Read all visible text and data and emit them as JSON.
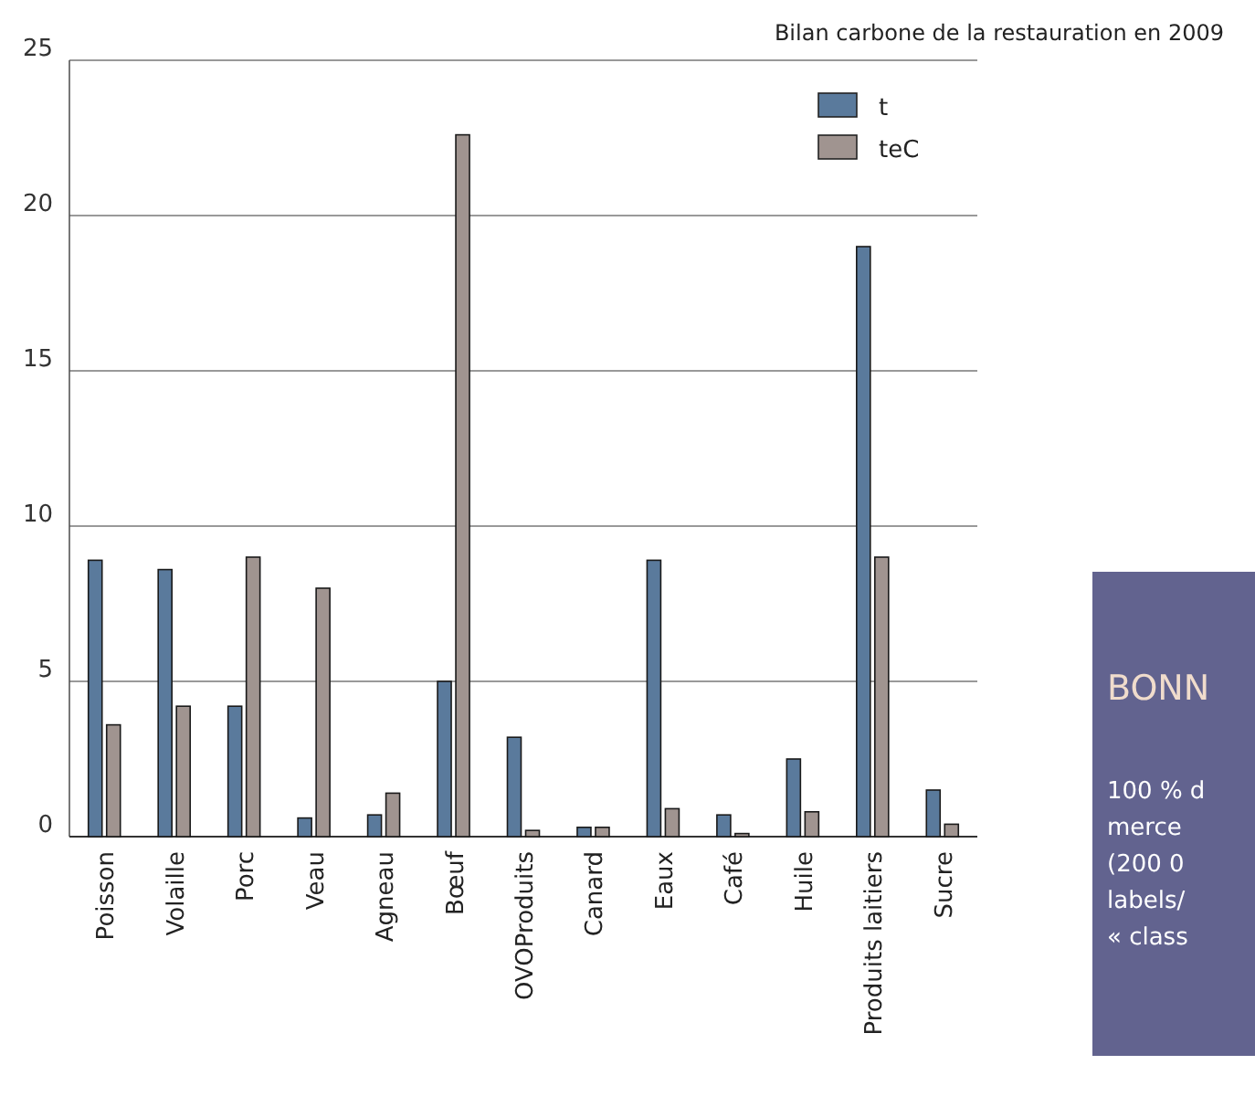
{
  "chart_data": [
    {
      "type": "bar",
      "title": "Bilan carbone de la restauration en 2009",
      "categories": [
        "Poisson",
        "Volaille",
        "Porc",
        "Veau",
        "Agneau",
        "Bœuf",
        "OVOProduits",
        "Canard",
        "Eaux",
        "Café",
        "Huile",
        "Produits laitiers",
        "Sucre"
      ],
      "series": [
        {
          "name": "t",
          "color": "#5a7a9c",
          "values": [
            8.9,
            8.6,
            4.2,
            0.6,
            0.7,
            5.0,
            3.2,
            0.3,
            8.9,
            0.7,
            2.5,
            19.0,
            1.5
          ]
        },
        {
          "name": "teC",
          "color": "#a09490",
          "values": [
            3.6,
            4.2,
            9.0,
            8.0,
            1.4,
            22.6,
            0.2,
            0.3,
            0.9,
            0.1,
            0.8,
            9.0,
            0.4
          ]
        }
      ],
      "ylim": [
        0,
        25
      ],
      "yticks": [
        0,
        5,
        10,
        15,
        20,
        25
      ],
      "grid": "y",
      "legend": "top right"
    },
    {
      "type": "other",
      "title": "BONN",
      "annotations": [
        "100 % d",
        "merce",
        "(200 0",
        "labels/",
        "« class"
      ]
    }
  ]
}
